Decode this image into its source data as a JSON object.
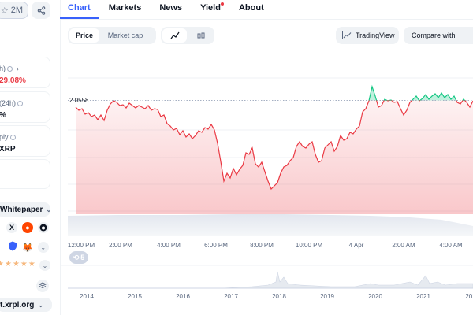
{
  "sidebar": {
    "watchlist_count": "2M",
    "stats": [
      {
        "label": "h)",
        "value": "29.08%"
      },
      {
        "label": "(24h)",
        "value": "%"
      },
      {
        "label": "ply",
        "value": "XRP"
      },
      {
        "label": "",
        "value": ""
      }
    ],
    "whitepaper_label": "Whitepaper",
    "social_x": "X",
    "explorer_label": "t.xrpl.org"
  },
  "tabs": [
    {
      "label": "Chart"
    },
    {
      "label": "Markets"
    },
    {
      "label": "News"
    },
    {
      "label": "Yield"
    },
    {
      "label": "About"
    }
  ],
  "toolbar": {
    "price_label": "Price",
    "marketcap_label": "Market cap",
    "tradingview_label": "TradingView",
    "compare_label": "Compare with"
  },
  "chart": {
    "reference_price": "2.0558",
    "time_ticks": [
      "12:00 PM",
      "2:00 PM",
      "4:00 PM",
      "6:00 PM",
      "8:00 PM",
      "10:00 PM",
      "4 Apr",
      "2:00 AM",
      "4:00 AM"
    ],
    "year_ticks": [
      "2014",
      "2015",
      "2016",
      "2017",
      "2018",
      "2019",
      "2020",
      "2021",
      "202"
    ],
    "events_count": "5",
    "colors": {
      "up": "#16c784",
      "down": "#ea3943",
      "accent": "#3861fb"
    }
  },
  "chart_data": {
    "type": "line",
    "x": [
      "12:00 PM",
      "2:00 PM",
      "4:00 PM",
      "6:00 PM",
      "8:00 PM",
      "10:00 PM",
      "4 Apr",
      "2:00 AM",
      "4:00 AM"
    ],
    "reference_line": 2.0558,
    "series": [
      {
        "values": [
          2.054,
          2.053,
          2.045,
          2.03,
          2.018,
          2.027,
          2.044,
          2.054,
          2.052
        ]
      }
    ]
  }
}
